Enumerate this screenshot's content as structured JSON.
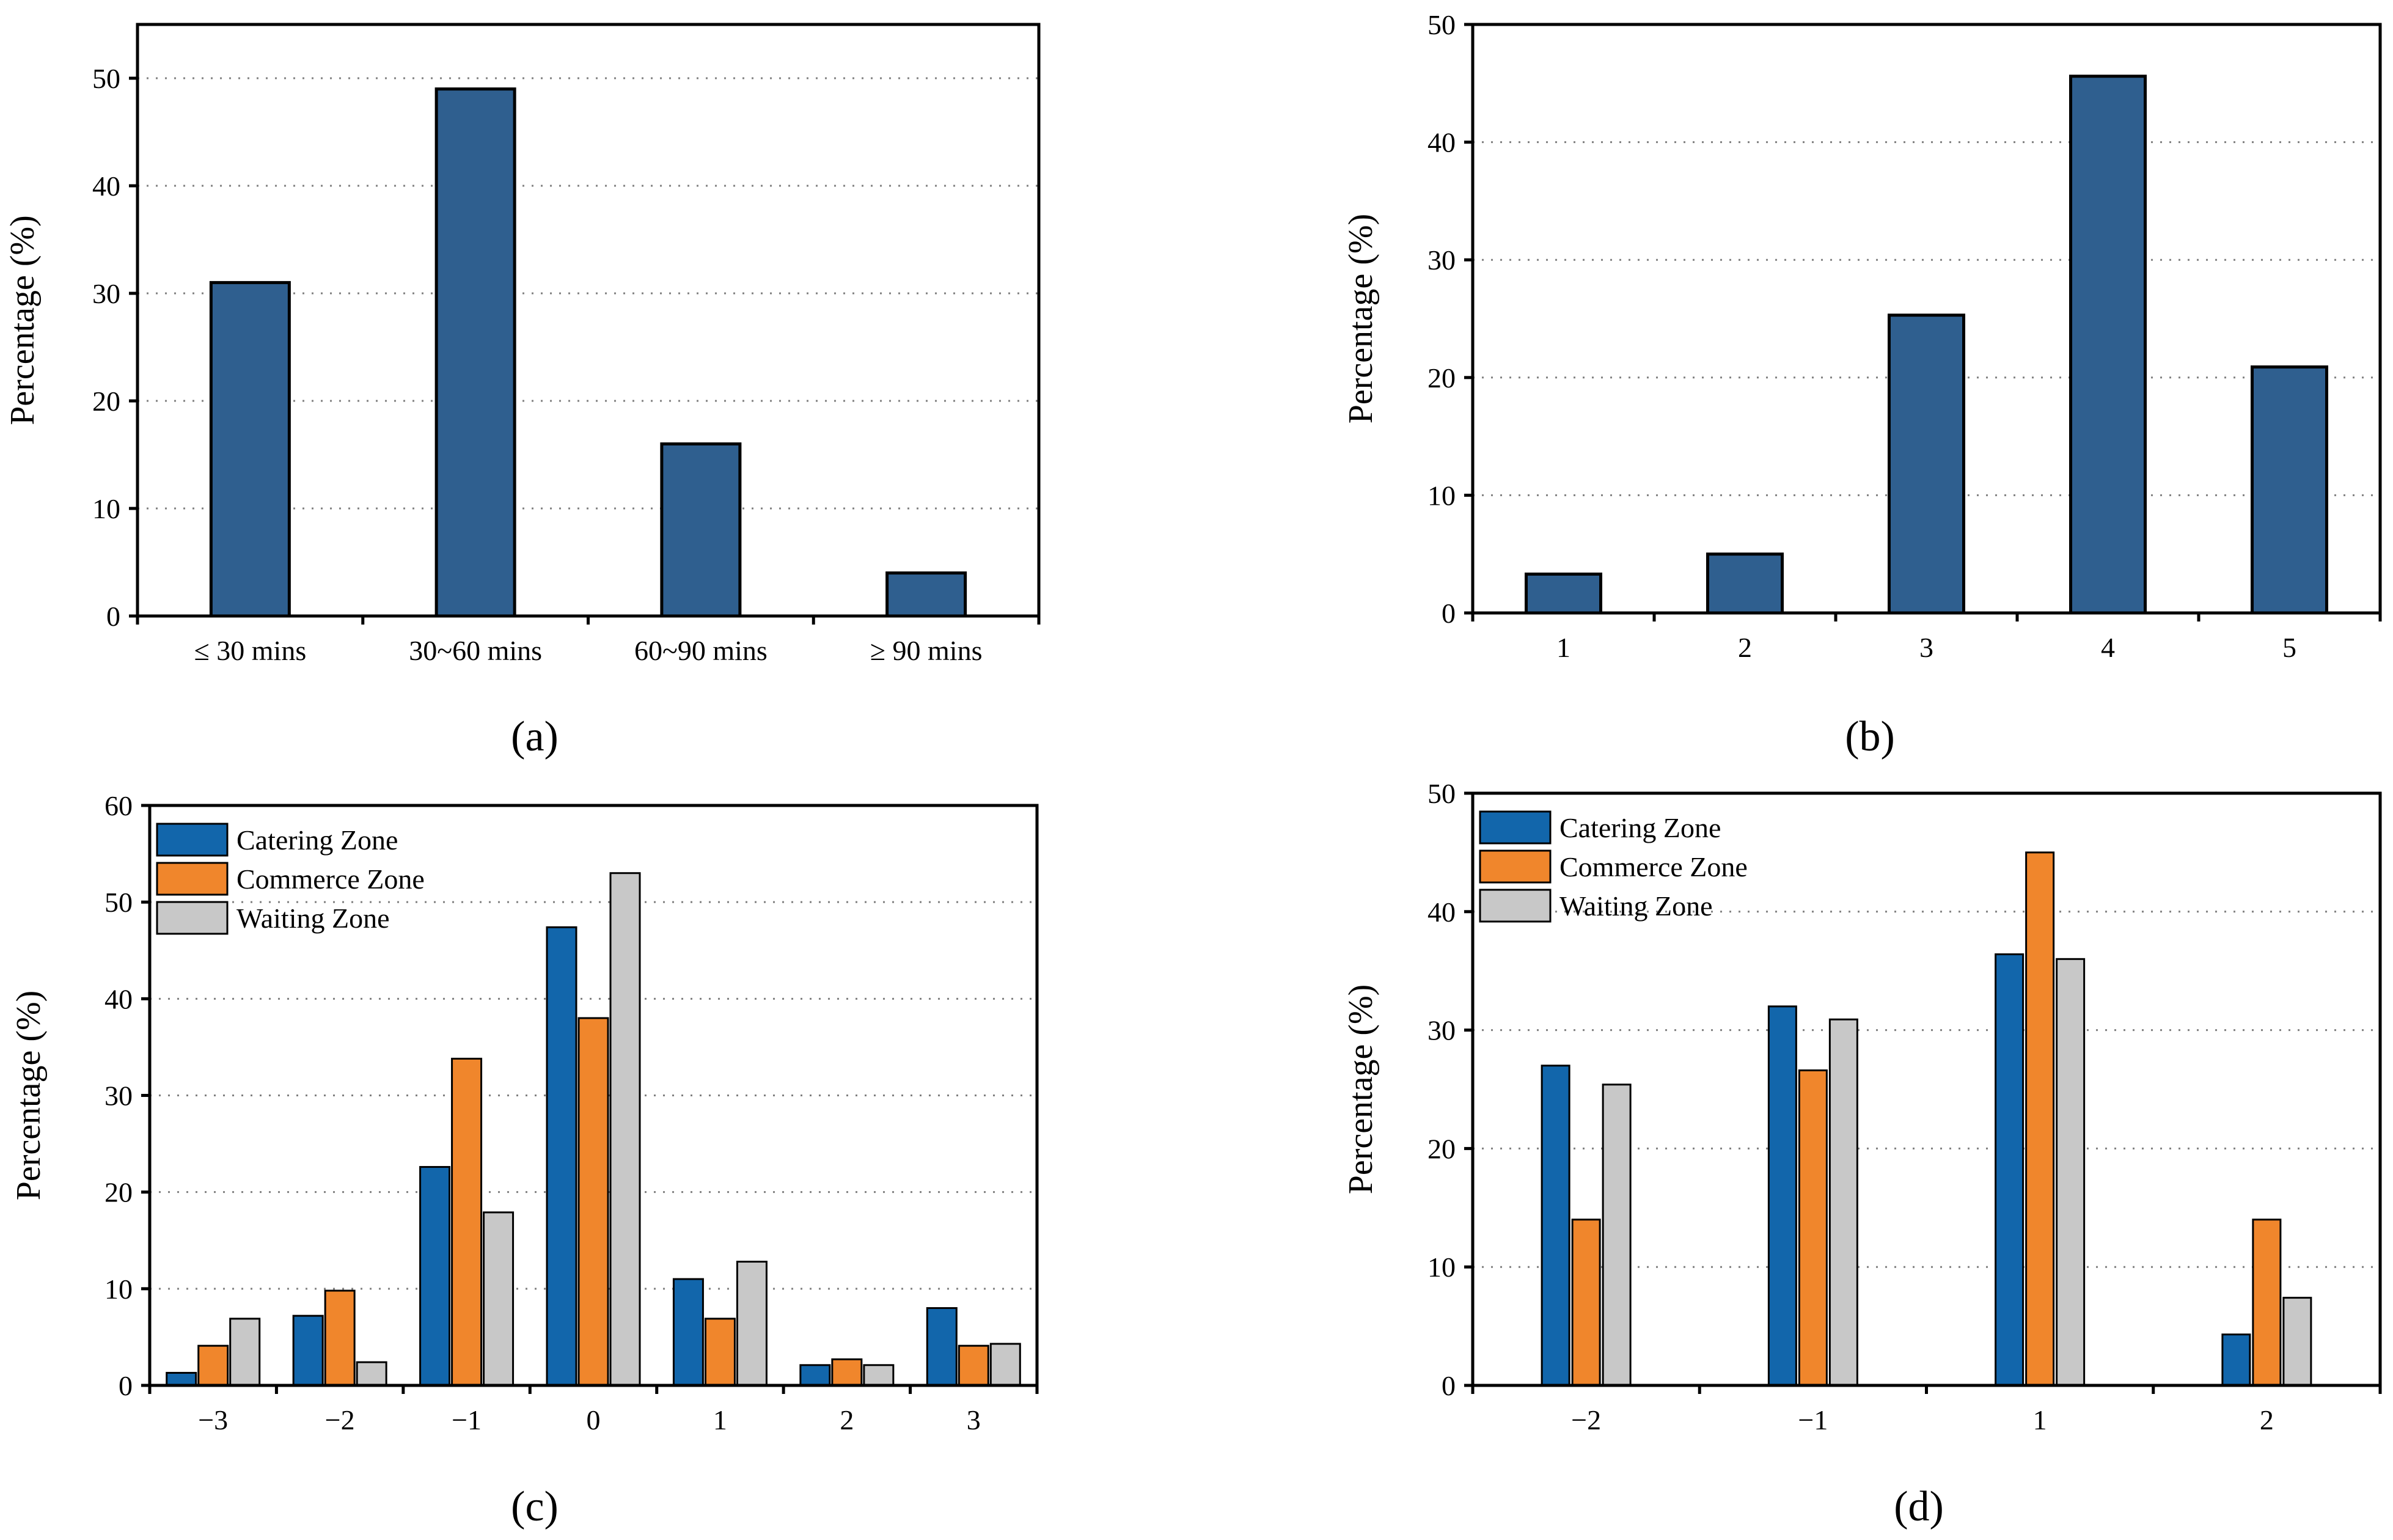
{
  "figure": {
    "panel_labels": [
      "(a)",
      "(b)",
      "(c)",
      "(d)"
    ]
  },
  "colors": {
    "bar_navy": "#2f5f8f",
    "catering": "#1266ab",
    "commerce": "#f0862c",
    "waiting": "#c8c8c8",
    "grid": "#808080"
  },
  "chart_data": [
    {
      "id": "a",
      "type": "bar",
      "categories": [
        "≤ 30 mins",
        "30~60 mins",
        "60~90 mins",
        "≥ 90 mins"
      ],
      "values": [
        31,
        49,
        16,
        4
      ],
      "ylabel": "Percentage (%)",
      "xlabel": "",
      "ylim": [
        0,
        55
      ],
      "yticks": [
        0,
        10,
        20,
        30,
        40,
        50
      ],
      "grid": true
    },
    {
      "id": "b",
      "type": "bar",
      "categories": [
        "1",
        "2",
        "3",
        "4",
        "5"
      ],
      "values": [
        3.3,
        5.0,
        25.3,
        45.6,
        20.9
      ],
      "ylabel": "Percentage (%)",
      "xlabel": "",
      "ylim": [
        0,
        50
      ],
      "yticks": [
        0,
        10,
        20,
        30,
        40,
        50
      ],
      "grid": true
    },
    {
      "id": "c",
      "type": "bar",
      "categories": [
        "−3",
        "−2",
        "−1",
        "0",
        "1",
        "2",
        "3"
      ],
      "series": [
        {
          "name": "Catering Zone",
          "values": [
            1.3,
            7.2,
            22.6,
            47.4,
            11.0,
            2.1,
            8.0
          ]
        },
        {
          "name": "Commerce Zone",
          "values": [
            4.1,
            9.8,
            33.8,
            38.0,
            6.9,
            2.7,
            4.1
          ]
        },
        {
          "name": "Waiting Zone",
          "values": [
            6.9,
            2.4,
            17.9,
            53.0,
            12.8,
            2.1,
            4.3
          ]
        }
      ],
      "ylabel": "Percentage (%)",
      "xlabel": "",
      "ylim": [
        0,
        60
      ],
      "yticks": [
        0,
        10,
        20,
        30,
        40,
        50,
        60
      ],
      "grid": true,
      "legend": "top-left"
    },
    {
      "id": "d",
      "type": "bar",
      "categories": [
        "−2",
        "−1",
        "1",
        "2"
      ],
      "series": [
        {
          "name": "Catering Zone",
          "values": [
            27.0,
            32.0,
            36.4,
            4.3
          ]
        },
        {
          "name": "Commerce Zone",
          "values": [
            14.0,
            26.6,
            45.0,
            14.0
          ]
        },
        {
          "name": "Waiting Zone",
          "values": [
            25.4,
            30.9,
            36.0,
            7.4
          ]
        }
      ],
      "ylabel": "Percentage (%)",
      "xlabel": "",
      "ylim": [
        0,
        50
      ],
      "yticks": [
        0,
        10,
        20,
        30,
        40,
        50
      ],
      "grid": true,
      "legend": "top-left"
    }
  ]
}
